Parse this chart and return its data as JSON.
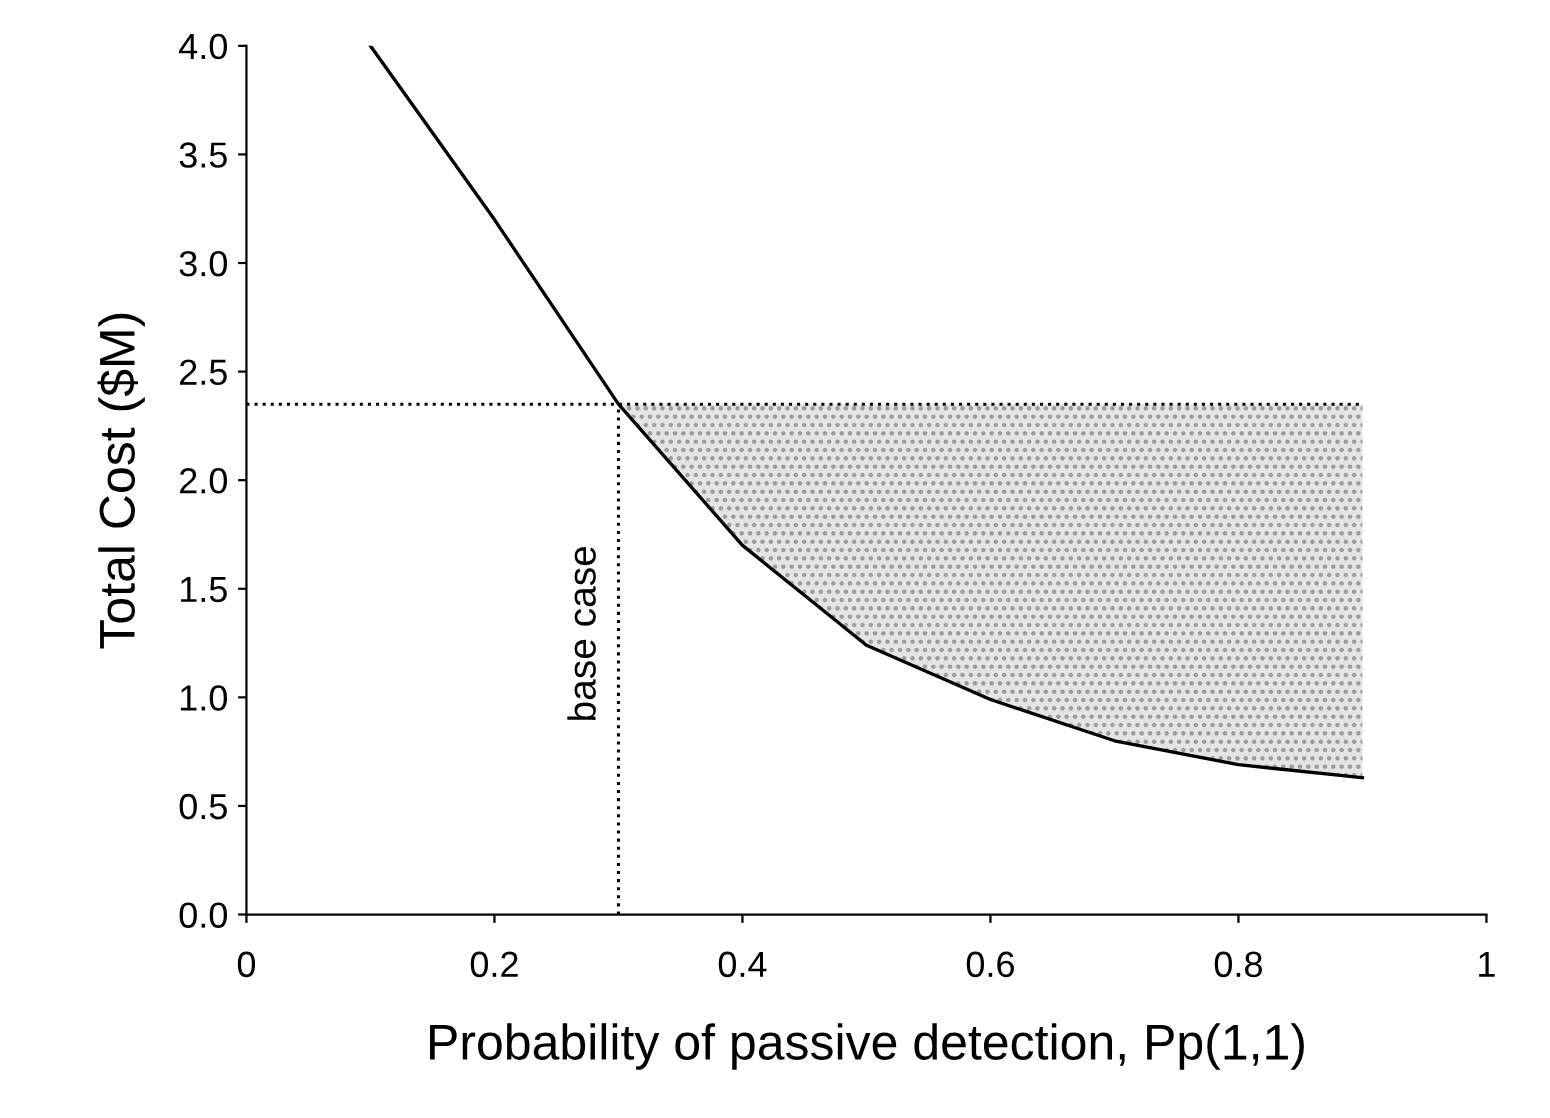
{
  "chart_data": {
    "type": "line",
    "xlabel": "Probability of passive detection, Pp(1,1)",
    "ylabel": "Total Cost ($M)",
    "x": [
      0.1,
      0.2,
      0.3,
      0.4,
      0.5,
      0.6,
      0.7,
      0.8,
      0.9
    ],
    "series": [
      {
        "color": "#000000",
        "values": [
          4.0,
          3.2,
          2.35,
          1.7,
          1.24,
          0.99,
          0.8,
          0.69,
          0.63
        ],
        "lower": [
          null,
          null,
          2.35,
          1.7,
          1.24,
          0.99,
          0.8,
          0.69,
          0.63
        ],
        "upper": [
          null,
          null,
          2.35,
          2.35,
          2.35,
          2.35,
          2.35,
          2.35,
          2.35
        ]
      }
    ],
    "ref_lines": [
      {
        "axis": "y",
        "value": 2.35,
        "line_style": "dotted",
        "color": "#000000"
      },
      {
        "axis": "x",
        "value": 0.3,
        "line_style": "dotted",
        "color": "#000000",
        "label": "base case"
      }
    ],
    "xlim": [
      0,
      1
    ],
    "xticks": [
      0,
      0.2,
      0.4,
      0.6,
      0.8,
      1
    ],
    "ylim": [
      0,
      4
    ],
    "yticks": [
      {
        "value": 0,
        "label": "0.0"
      },
      0.5,
      {
        "value": 1,
        "label": "1.0"
      },
      1.5,
      {
        "value": 2,
        "label": "2.0"
      },
      2.5,
      {
        "value": 3,
        "label": "3.0"
      },
      3.5,
      {
        "value": 4,
        "label": "4.0"
      }
    ],
    "grid": false,
    "legend": false,
    "marker": "none",
    "line_style": "solid"
  }
}
